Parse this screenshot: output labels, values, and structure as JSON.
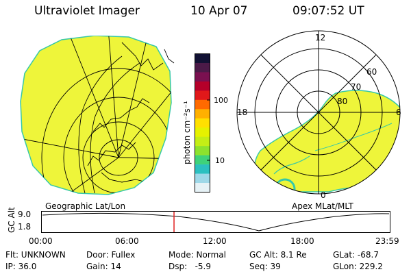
{
  "header": {
    "title": "Ultraviolet Imager",
    "date": "10 Apr 07",
    "time": "09:07:52 UT"
  },
  "colorbar": {
    "unit_label": "photon cm⁻²s⁻¹",
    "ticks": [
      "100",
      "10"
    ],
    "colors": [
      "#111133",
      "#4b1a48",
      "#7a1050",
      "#b5002a",
      "#e0181a",
      "#ff6a00",
      "#ffb000",
      "#ffe000",
      "#e6f200",
      "#c4ee16",
      "#8de22e",
      "#3fd27a",
      "#2cc0c0",
      "#9ed8e8",
      "#e6f2f6"
    ]
  },
  "geographic_panel": {
    "label": "Geographic Lat/Lon",
    "fill_color": "#eef53a"
  },
  "polar_panel": {
    "label": "Apex MLat/MLT",
    "mlt_labels": [
      "12",
      "18",
      "6",
      "0"
    ],
    "lat_labels": [
      "60",
      "70",
      "80"
    ]
  },
  "altitude_plot": {
    "y_label": "GC Alt",
    "y_ticks": [
      "9.0",
      "1.8"
    ],
    "x_ticks": [
      "00:00",
      "06:00",
      "12:00",
      "18:00",
      "23:59"
    ],
    "marker_time": "09:07",
    "marker_fraction": 0.38
  },
  "info": {
    "row1": [
      "Flt: UNKNOWN",
      "Door: Fullex",
      "Mode: Normal",
      "GC Alt: 8.1 Re",
      "GLat: -68.7"
    ],
    "row2": [
      "IP: 36.0",
      "Gain: 14",
      "Dsp:   -5.9",
      "Seq: 39",
      "GLon: 229.2"
    ]
  }
}
